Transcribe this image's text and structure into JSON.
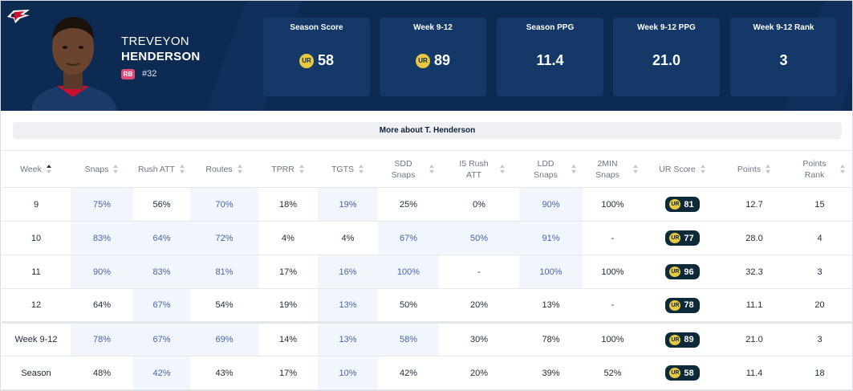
{
  "player": {
    "first_name": "TREVEYON",
    "last_name": "HENDERSON",
    "position": "RB",
    "number": "#32",
    "team_logo": "patriots-logo"
  },
  "stats": [
    {
      "label": "Season Score",
      "value": "58",
      "ur": true
    },
    {
      "label": "Week 9-12",
      "value": "89",
      "ur": true
    },
    {
      "label": "Season PPG",
      "value": "11.4",
      "ur": false
    },
    {
      "label": "Week 9-12 PPG",
      "value": "21.0",
      "ur": false
    },
    {
      "label": "Week 9-12 Rank",
      "value": "3",
      "ur": false
    }
  ],
  "ur_badge_text": "UR",
  "more_button": "More about T. Henderson",
  "columns": [
    "Week",
    "Snaps",
    "Rush ATT",
    "Routes",
    "TPRR",
    "TGTS",
    "SDD Snaps",
    "I5 Rush ATT",
    "LDD Snaps",
    "2MIN Snaps",
    "UR Score",
    "Points",
    "Points Rank"
  ],
  "rows": [
    {
      "cells": [
        "9",
        "75%",
        "56%",
        "70%",
        "18%",
        "19%",
        "25%",
        "0%",
        "90%",
        "100%",
        "81",
        "12.7",
        "15"
      ],
      "hl": [
        1,
        3,
        5,
        8
      ]
    },
    {
      "cells": [
        "10",
        "83%",
        "64%",
        "72%",
        "4%",
        "4%",
        "67%",
        "50%",
        "91%",
        "-",
        "77",
        "28.0",
        "4"
      ],
      "hl": [
        1,
        2,
        3,
        6,
        7,
        8
      ]
    },
    {
      "cells": [
        "11",
        "90%",
        "83%",
        "81%",
        "17%",
        "16%",
        "100%",
        "-",
        "100%",
        "100%",
        "96",
        "32.3",
        "3"
      ],
      "hl": [
        1,
        2,
        3,
        5,
        6,
        8
      ]
    },
    {
      "cells": [
        "12",
        "64%",
        "67%",
        "54%",
        "19%",
        "13%",
        "50%",
        "20%",
        "13%",
        "-",
        "78",
        "11.1",
        "20"
      ],
      "hl": [
        2,
        5
      ]
    },
    {
      "cells": [
        "Week 9-12",
        "78%",
        "67%",
        "69%",
        "14%",
        "13%",
        "58%",
        "30%",
        "78%",
        "100%",
        "89",
        "21.0",
        "3"
      ],
      "hl": [
        1,
        2,
        3,
        5,
        6
      ]
    },
    {
      "cells": [
        "Season",
        "48%",
        "42%",
        "43%",
        "17%",
        "10%",
        "42%",
        "20%",
        "39%",
        "52%",
        "58",
        "11.4",
        "18"
      ],
      "hl": [
        2,
        5
      ]
    }
  ],
  "colors": {
    "header_bg": "#0c2a52",
    "card_bg": "#143968",
    "highlight_text": "#4a64b8",
    "ur_gold": "#e8c840"
  }
}
